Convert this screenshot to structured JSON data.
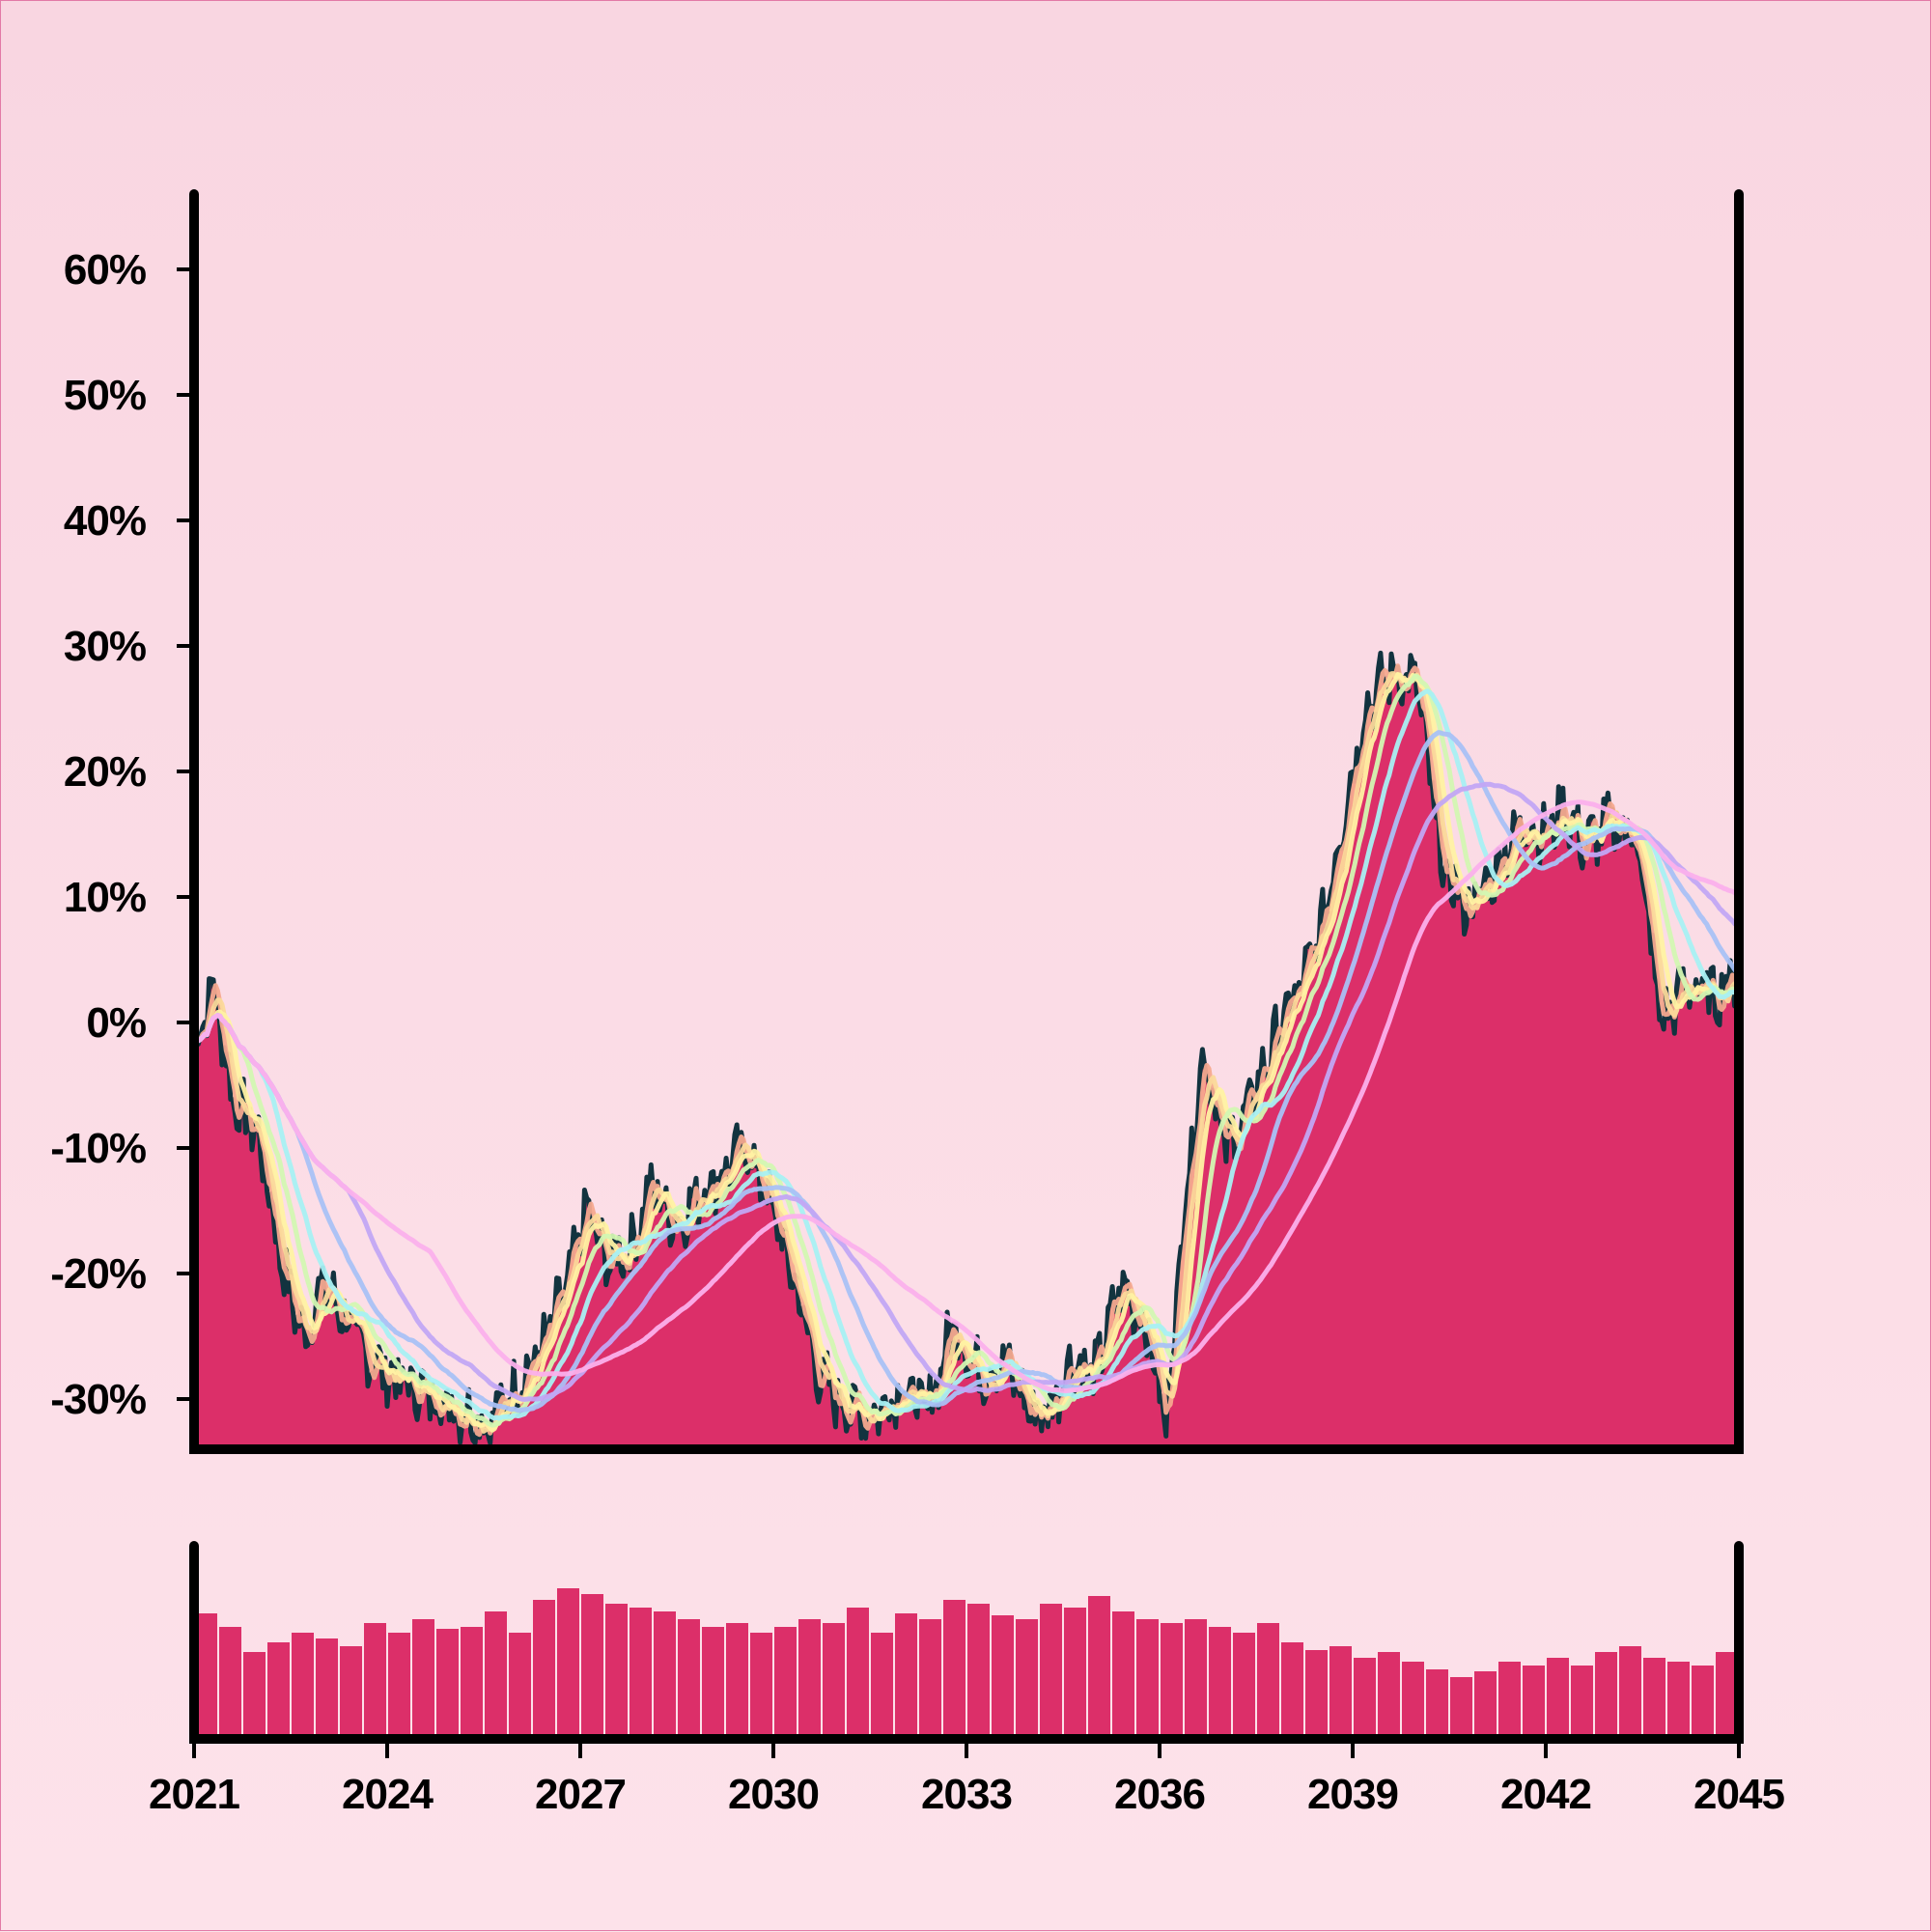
{
  "chart_data": [
    {
      "type": "area",
      "title": "",
      "xlabel": "",
      "ylabel": "",
      "xlim": [
        2021,
        2045
      ],
      "ylim": [
        -34,
        66
      ],
      "grid": false,
      "y_ticks": [
        {
          "value": 60,
          "label": "60%"
        },
        {
          "value": 50,
          "label": "50%"
        },
        {
          "value": 40,
          "label": "40%"
        },
        {
          "value": 30,
          "label": "30%"
        },
        {
          "value": 20,
          "label": "20%"
        },
        {
          "value": 10,
          "label": "10%"
        },
        {
          "value": 0,
          "label": "0%"
        },
        {
          "value": -10,
          "label": "-10%"
        },
        {
          "value": -20,
          "label": "-20%"
        },
        {
          "value": -30,
          "label": "-30%"
        }
      ],
      "colors": {
        "area_fill": "#dc2f69",
        "area_outline": "#12333f",
        "axes": "#000000",
        "moving_averages": [
          "#f6a98f",
          "#fbd99a",
          "#fff2a3",
          "#d3f7b2",
          "#a8f0f3",
          "#a9c1f6",
          "#c2a7f4",
          "#fbb0ec"
        ]
      },
      "series": [
        {
          "x": [
            2021.0,
            2021.3,
            2021.6,
            2022.0,
            2022.4,
            2022.7,
            2023.0,
            2023.3,
            2023.6,
            2024.0,
            2024.4,
            2024.8,
            2025.2,
            2025.6,
            2026.0,
            2026.4,
            2026.8,
            2027.1,
            2027.4,
            2027.8,
            2028.1,
            2028.5,
            2028.8,
            2029.2,
            2029.6,
            2030.0,
            2030.4,
            2030.7,
            2031.0,
            2031.3,
            2031.6,
            2032.0,
            2032.4,
            2032.8,
            2033.2,
            2033.6,
            2034.0,
            2034.3,
            2034.6,
            2035.0,
            2035.4,
            2035.8,
            2036.1,
            2036.4,
            2036.7,
            2037.0,
            2037.3,
            2037.6,
            2037.9,
            2038.2,
            2038.5,
            2038.8,
            2039.2,
            2039.6,
            2040.0,
            2040.4,
            2040.8,
            2041.1,
            2041.4,
            2041.7,
            2042.0,
            2042.3,
            2042.6,
            2043.0,
            2043.4,
            2043.8,
            2044.2,
            2044.6,
            2045.0
          ],
          "values": [
            -2,
            3,
            -6,
            -9,
            -20,
            -25,
            -21,
            -23,
            -26,
            -28,
            -29,
            -30,
            -31,
            -32,
            -29,
            -26,
            -21,
            -15,
            -19,
            -18,
            -13,
            -16,
            -14,
            -12,
            -10,
            -15,
            -22,
            -28,
            -30,
            -31,
            -31,
            -29,
            -31,
            -24,
            -28,
            -27,
            -31,
            -31,
            -27,
            -28,
            -21,
            -24,
            -32,
            -14,
            -2,
            -10,
            -8,
            -4,
            0,
            3,
            7,
            15,
            25,
            28,
            27,
            12,
            9,
            11,
            14,
            16,
            15,
            17,
            14,
            16,
            15,
            0,
            3,
            2,
            4
          ]
        }
      ]
    },
    {
      "type": "bar",
      "title": "",
      "xlabel": "",
      "ylabel": "",
      "x_ticks": [
        "2021",
        "2024",
        "2027",
        "2030",
        "2033",
        "2036",
        "2039",
        "2042",
        "2045"
      ],
      "xlim": [
        2021,
        2045
      ],
      "ylim": [
        0,
        1
      ],
      "values": [
        0.65,
        0.58,
        0.45,
        0.5,
        0.55,
        0.52,
        0.48,
        0.6,
        0.55,
        0.62,
        0.57,
        0.58,
        0.66,
        0.55,
        0.72,
        0.78,
        0.75,
        0.7,
        0.68,
        0.66,
        0.62,
        0.58,
        0.6,
        0.55,
        0.58,
        0.62,
        0.6,
        0.68,
        0.55,
        0.65,
        0.62,
        0.72,
        0.7,
        0.64,
        0.62,
        0.7,
        0.68,
        0.74,
        0.66,
        0.62,
        0.6,
        0.62,
        0.58,
        0.55,
        0.6,
        0.5,
        0.46,
        0.48,
        0.42,
        0.45,
        0.4,
        0.36,
        0.32,
        0.35,
        0.4,
        0.38,
        0.42,
        0.38,
        0.45,
        0.48,
        0.42,
        0.4,
        0.38,
        0.45
      ]
    }
  ]
}
